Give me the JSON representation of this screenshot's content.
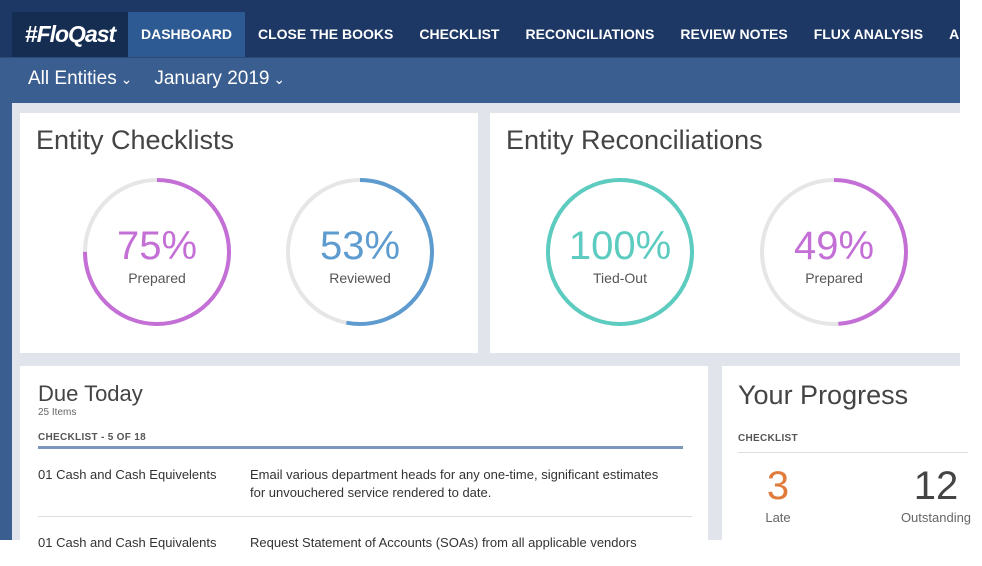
{
  "nav": {
    "logo": "#FloQast",
    "tabs": [
      "DASHBOARD",
      "CLOSE THE BOOKS",
      "CHECKLIST",
      "RECONCILIATIONS",
      "REVIEW NOTES",
      "FLUX ANALYSIS",
      "A"
    ]
  },
  "filters": [
    "All Entities",
    "January 2019"
  ],
  "cards": [
    {
      "title": "Entity Checklists",
      "rings": [
        {
          "value": 75,
          "label": "75%",
          "caption": "Prepared",
          "color": "#c46fd6"
        },
        {
          "value": 53,
          "label": "53%",
          "caption": "Reviewed",
          "color": "#5e9cd0"
        }
      ]
    },
    {
      "title": "Entity Reconciliations",
      "rings": [
        {
          "value": 100,
          "label": "100%",
          "caption": "Tied-Out",
          "color": "#5ccbc0"
        },
        {
          "value": 49,
          "label": "49%",
          "caption": "Prepared",
          "color": "#c46fd6"
        }
      ]
    }
  ],
  "due_today": {
    "title": "Due Today",
    "count": "25 Items",
    "section": "CHECKLIST - 5 OF 18",
    "rows": [
      [
        "01 Cash and Cash Equivelents",
        "Email various department heads for any one-time, significant estimates for unvouchered service rendered to date."
      ],
      [
        "01 Cash and Cash Equivalents",
        "Request Statement of Accounts (SOAs) from all applicable vendors"
      ]
    ]
  },
  "progress": {
    "title": "Your Progress",
    "section": "CHECKLIST",
    "stats": [
      {
        "value": 3,
        "label": "Late"
      },
      {
        "value": 12,
        "label": "Outstanding"
      }
    ]
  }
}
